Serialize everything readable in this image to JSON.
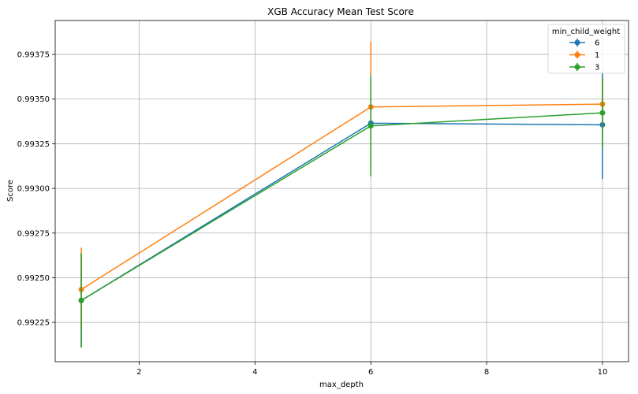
{
  "chart_data": {
    "type": "line",
    "title": "XGB Accuracy Mean Test Score",
    "xlabel": "max_depth",
    "ylabel": "Score",
    "xlim": [
      0.55,
      10.45
    ],
    "ylim": [
      0.99203,
      0.99394
    ],
    "x_ticks": [
      2,
      4,
      6,
      8,
      10
    ],
    "y_ticks": [
      0.99225,
      0.9925,
      0.99275,
      0.993,
      0.99325,
      0.9935,
      0.99375
    ],
    "y_tick_labels": [
      "0.99225",
      "0.99250",
      "0.99275",
      "0.99300",
      "0.99325",
      "0.99350",
      "0.99375"
    ],
    "grid": true,
    "legend": {
      "title": "min_child_weight",
      "placement": "top-right"
    },
    "series": [
      {
        "name": "6",
        "color": "#1f77b4",
        "x": [
          1,
          6,
          10
        ],
        "y": [
          0.992373,
          0.993365,
          0.993356
        ],
        "err": [
          0.000258,
          0.000246,
          0.000304
        ]
      },
      {
        "name": "1",
        "color": "#ff7f0e",
        "x": [
          1,
          6,
          10
        ],
        "y": [
          0.992434,
          0.993456,
          0.993472
        ],
        "err": [
          0.000234,
          0.000367,
          0.000139
        ]
      },
      {
        "name": "3",
        "color": "#2ca02c",
        "x": [
          1,
          6,
          10
        ],
        "y": [
          0.992373,
          0.99335,
          0.993423
        ],
        "err": [
          0.000265,
          0.000283,
          0.000196
        ]
      }
    ]
  }
}
